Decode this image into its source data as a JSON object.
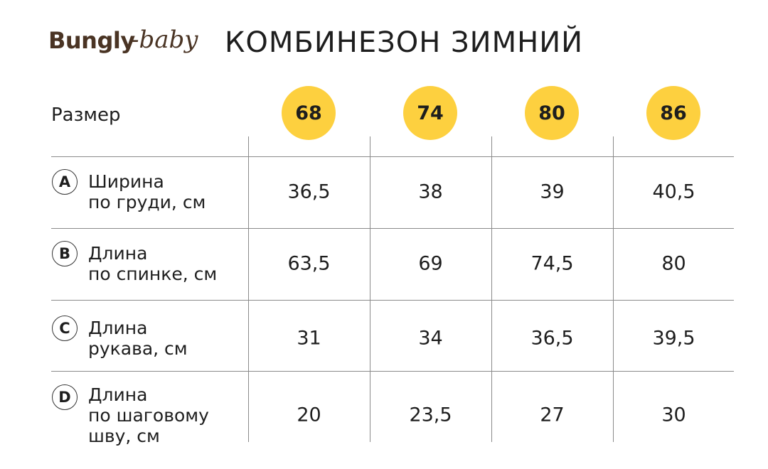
{
  "header": {
    "logo": {
      "primary": "Bungly",
      "secondary": "-baby"
    },
    "title": "КОМБИНЕЗОН ЗИМНИЙ"
  },
  "table": {
    "size_label": "Размер",
    "sizes": [
      "68",
      "74",
      "80",
      "86"
    ],
    "rows": [
      {
        "letter": "A",
        "label": [
          "Ширина",
          "по груди, см"
        ],
        "values": [
          "36,5",
          "38",
          "39",
          "40,5"
        ]
      },
      {
        "letter": "B",
        "label": [
          "Длина",
          "по спинке, см"
        ],
        "values": [
          "63,5",
          "69",
          "74,5",
          "80"
        ]
      },
      {
        "letter": "C",
        "label": [
          "Длина",
          "рукава, см"
        ],
        "values": [
          "31",
          "34",
          "36,5",
          "39,5"
        ]
      },
      {
        "letter": "D",
        "label": [
          "Длина",
          "по шаговому",
          "шву, см"
        ],
        "values": [
          "20",
          "23,5",
          "27",
          "30"
        ]
      }
    ]
  }
}
